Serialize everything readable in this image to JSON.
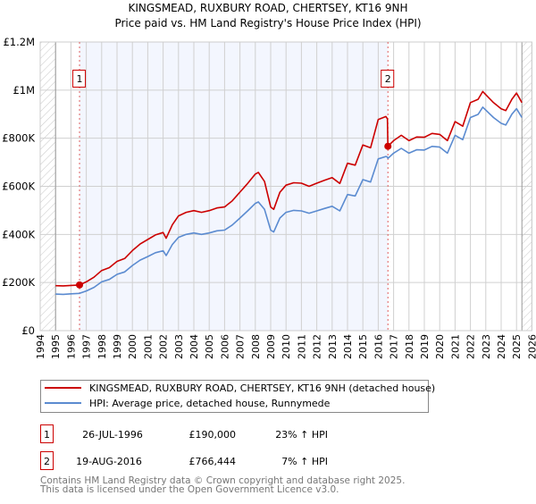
{
  "chart_data": {
    "type": "line",
    "title": "KINGSMEAD, RUXBURY ROAD, CHERTSEY, KT16 9NH",
    "subtitle": "Price paid vs. HM Land Registry's House Price Index (HPI)",
    "xlabel": "",
    "ylabel": "",
    "xlim": [
      1994,
      2026
    ],
    "ylim": [
      0,
      1200000
    ],
    "grid": true,
    "x_ticks": [
      "1994",
      "1995",
      "1996",
      "1997",
      "1998",
      "1999",
      "2000",
      "2001",
      "2002",
      "2003",
      "2004",
      "2005",
      "2006",
      "2007",
      "2008",
      "2009",
      "2010",
      "2011",
      "2012",
      "2013",
      "2014",
      "2015",
      "2016",
      "2017",
      "2018",
      "2019",
      "2020",
      "2021",
      "2022",
      "2023",
      "2024",
      "2025",
      "2026"
    ],
    "y_ticks": [
      {
        "value": 0,
        "label": "£0"
      },
      {
        "value": 200000,
        "label": "£200K"
      },
      {
        "value": 400000,
        "label": "£400K"
      },
      {
        "value": 600000,
        "label": "£600K"
      },
      {
        "value": 800000,
        "label": "£800K"
      },
      {
        "value": 1000000,
        "label": "£1M"
      },
      {
        "value": 1200000,
        "label": "£1.2M"
      }
    ],
    "data_start": 1995,
    "data_end": 2025.35,
    "series": [
      {
        "name": "KINGSMEAD, RUXBURY ROAD, CHERTSEY, KT16 9NH (detached house)",
        "color": "#cc0000",
        "x": [
          1995,
          1995.5,
          1996,
          1996.56,
          1997,
          1997.5,
          1998,
          1998.5,
          1999,
          1999.5,
          2000,
          2000.5,
          2001,
          2001.5,
          2002,
          2002.2,
          2002.6,
          2003,
          2003.5,
          2004,
          2004.5,
          2005,
          2005.5,
          2006,
          2006.5,
          2007,
          2007.5,
          2008,
          2008.2,
          2008.6,
          2009,
          2009.2,
          2009.6,
          2010,
          2010.5,
          2011,
          2011.5,
          2012,
          2012.5,
          2013,
          2013.5,
          2014,
          2014.5,
          2015,
          2015.5,
          2016,
          2016.5,
          2016.6,
          2016.63,
          2017,
          2017.5,
          2018,
          2018.5,
          2019,
          2019.5,
          2020,
          2020.5,
          2021,
          2021.5,
          2022,
          2022.5,
          2022.8,
          2023,
          2023.5,
          2024,
          2024.3,
          2024.7,
          2025,
          2025.35
        ],
        "values": [
          187000,
          186000,
          188000,
          190000,
          203000,
          222000,
          250000,
          262000,
          288000,
          300000,
          333000,
          360000,
          379000,
          398000,
          408000,
          384000,
          440000,
          477000,
          492000,
          499000,
          492000,
          499000,
          510000,
          514000,
          540000,
          576000,
          612000,
          651000,
          658000,
          620000,
          514000,
          504000,
          575000,
          605000,
          615000,
          613000,
          600000,
          613000,
          625000,
          636000,
          612000,
          696000,
          688000,
          772000,
          760000,
          878000,
          890000,
          880000,
          766444,
          790000,
          812000,
          790000,
          805000,
          804000,
          820000,
          816000,
          790000,
          869000,
          850000,
          948000,
          962000,
          994000,
          981000,
          948000,
          922000,
          915000,
          962000,
          988000,
          948000
        ]
      },
      {
        "name": "HPI: Average price, detached house, Runnymede",
        "color": "#5b8bd0",
        "x": [
          1995,
          1995.5,
          1996,
          1996.56,
          1997,
          1997.5,
          1998,
          1998.5,
          1999,
          1999.5,
          2000,
          2000.5,
          2001,
          2001.5,
          2002,
          2002.2,
          2002.6,
          2003,
          2003.5,
          2004,
          2004.5,
          2005,
          2005.5,
          2006,
          2006.5,
          2007,
          2007.5,
          2008,
          2008.2,
          2008.6,
          2009,
          2009.2,
          2009.6,
          2010,
          2010.5,
          2011,
          2011.5,
          2012,
          2012.5,
          2013,
          2013.5,
          2014,
          2014.5,
          2015,
          2015.5,
          2016,
          2016.5,
          2016.6,
          2016.63,
          2017,
          2017.5,
          2018,
          2018.5,
          2019,
          2019.5,
          2020,
          2020.5,
          2021,
          2021.5,
          2022,
          2022.5,
          2022.8,
          2023,
          2023.5,
          2024,
          2024.3,
          2024.7,
          2025,
          2025.35
        ],
        "values": [
          152000,
          151000,
          153000,
          155000,
          165000,
          180000,
          203000,
          213000,
          234000,
          244000,
          271000,
          293000,
          308000,
          324000,
          332000,
          312000,
          358000,
          388000,
          400000,
          406000,
          400000,
          406000,
          415000,
          418000,
          439000,
          468000,
          498000,
          529000,
          535000,
          504000,
          418000,
          410000,
          468000,
          492000,
          500000,
          498000,
          488000,
          498000,
          508000,
          517000,
          498000,
          566000,
          560000,
          628000,
          618000,
          714000,
          724000,
          722000,
          716000,
          738000,
          758000,
          738000,
          752000,
          751000,
          766000,
          763000,
          738000,
          812000,
          794000,
          886000,
          899000,
          929000,
          917000,
          886000,
          862000,
          855000,
          900000,
          923000,
          886000
        ]
      }
    ],
    "annotations": [
      {
        "id": "1",
        "x": 1996.56,
        "y": 190000,
        "date": "26-JUL-1996",
        "price": "£190,000",
        "hpi": "23% ↑ HPI"
      },
      {
        "id": "2",
        "x": 2016.63,
        "y": 766444,
        "date": "19-AUG-2016",
        "price": "£766,444",
        "hpi": "7% ↑ HPI"
      }
    ],
    "legend_position": "bottom"
  },
  "footer": {
    "line1": "Contains HM Land Registry data © Crown copyright and database right 2025.",
    "line2": "This data is licensed under the Open Government Licence v3.0."
  }
}
